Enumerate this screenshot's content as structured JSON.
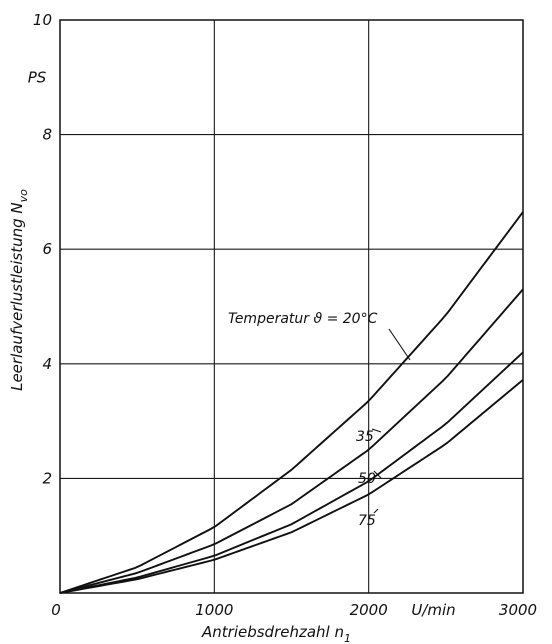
{
  "chart_data": {
    "type": "line",
    "title": "",
    "xlabel": "Antriebsdrehzahl n",
    "xlabel_sub": "1",
    "ylabel": "Leerlaufverlustleistung N",
    "ylabel_sub": "vo",
    "x_unit": "U/min",
    "y_unit": "PS",
    "xlim": [
      0,
      3000
    ],
    "ylim": [
      0,
      10
    ],
    "grid": true,
    "x_ticks": [
      {
        "value": 0,
        "label": "0"
      },
      {
        "value": 1000,
        "label": "1000"
      },
      {
        "value": 2000,
        "label": "2000"
      },
      {
        "value": 3000,
        "label": "3000"
      }
    ],
    "y_ticks": [
      {
        "value": 2,
        "label": "2"
      },
      {
        "value": 4,
        "label": "4"
      },
      {
        "value": 6,
        "label": "6"
      },
      {
        "value": 8,
        "label": "8"
      },
      {
        "value": 10,
        "label": "10"
      }
    ],
    "series": [
      {
        "name": "Temperatur ϑ = 20°C",
        "label": "Temperatur ϑ = 20°C",
        "x": [
          0,
          500,
          1000,
          1500,
          2000,
          2500,
          3000
        ],
        "y": [
          0,
          0.45,
          1.15,
          2.15,
          3.35,
          4.85,
          6.65
        ]
      },
      {
        "name": "35",
        "label": "35",
        "x": [
          0,
          500,
          1000,
          1500,
          2000,
          2500,
          3000
        ],
        "y": [
          0,
          0.35,
          0.85,
          1.55,
          2.5,
          3.75,
          5.3
        ]
      },
      {
        "name": "50",
        "label": "50",
        "x": [
          0,
          500,
          1000,
          1500,
          2000,
          2500,
          3000
        ],
        "y": [
          0,
          0.27,
          0.65,
          1.2,
          1.95,
          2.95,
          4.2
        ]
      },
      {
        "name": "75",
        "label": "75",
        "x": [
          0,
          500,
          1000,
          1500,
          2000,
          2500,
          3000
        ],
        "y": [
          0,
          0.24,
          0.58,
          1.06,
          1.72,
          2.6,
          3.72
        ]
      }
    ]
  }
}
